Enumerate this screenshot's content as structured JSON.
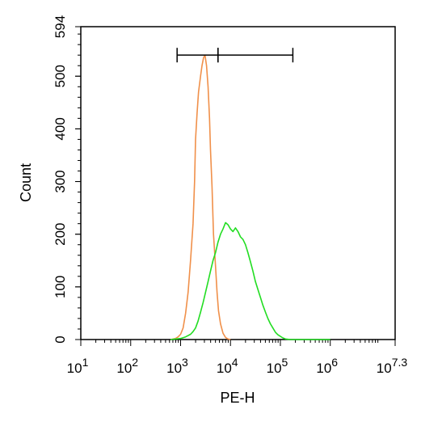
{
  "chart_data": {
    "type": "line",
    "xlabel": "PE-H",
    "ylabel": "Count",
    "x_scale": "log10",
    "xlim": [
      1,
      7.3
    ],
    "ylim": [
      0,
      594
    ],
    "x_ticks": [
      {
        "exp": 1,
        "base": "10",
        "sup": "1"
      },
      {
        "exp": 2,
        "base": "10",
        "sup": "2"
      },
      {
        "exp": 3,
        "base": "10",
        "sup": "3"
      },
      {
        "exp": 4,
        "base": "10",
        "sup": "4"
      },
      {
        "exp": 5,
        "base": "10",
        "sup": "5"
      },
      {
        "exp": 6,
        "base": "10",
        "sup": "6"
      },
      {
        "exp": 7.3,
        "base": "10",
        "sup": "7.3"
      }
    ],
    "y_ticks": [
      0,
      100,
      200,
      300,
      400,
      500,
      594
    ],
    "series": [
      {
        "color": "#f0904a",
        "points": [
          [
            2.8,
            0
          ],
          [
            2.9,
            2
          ],
          [
            2.95,
            5
          ],
          [
            3.0,
            10
          ],
          [
            3.05,
            22
          ],
          [
            3.1,
            50
          ],
          [
            3.15,
            90
          ],
          [
            3.2,
            150
          ],
          [
            3.25,
            220
          ],
          [
            3.28,
            300
          ],
          [
            3.3,
            380
          ],
          [
            3.33,
            430
          ],
          [
            3.36,
            470
          ],
          [
            3.4,
            500
          ],
          [
            3.43,
            520
          ],
          [
            3.46,
            535
          ],
          [
            3.49,
            540
          ],
          [
            3.52,
            520
          ],
          [
            3.55,
            480
          ],
          [
            3.58,
            420
          ],
          [
            3.6,
            360
          ],
          [
            3.63,
            290
          ],
          [
            3.66,
            200
          ],
          [
            3.7,
            140
          ],
          [
            3.73,
            90
          ],
          [
            3.76,
            55
          ],
          [
            3.8,
            30
          ],
          [
            3.85,
            12
          ],
          [
            3.9,
            4
          ],
          [
            3.95,
            1
          ],
          [
            4.0,
            0
          ]
        ]
      },
      {
        "color": "#22dd22",
        "points": [
          [
            2.8,
            0
          ],
          [
            3.0,
            2
          ],
          [
            3.1,
            5
          ],
          [
            3.2,
            10
          ],
          [
            3.25,
            15
          ],
          [
            3.3,
            22
          ],
          [
            3.35,
            35
          ],
          [
            3.4,
            52
          ],
          [
            3.45,
            70
          ],
          [
            3.5,
            90
          ],
          [
            3.55,
            110
          ],
          [
            3.6,
            130
          ],
          [
            3.65,
            150
          ],
          [
            3.7,
            165
          ],
          [
            3.75,
            185
          ],
          [
            3.8,
            200
          ],
          [
            3.85,
            210
          ],
          [
            3.9,
            222
          ],
          [
            3.95,
            218
          ],
          [
            4.0,
            210
          ],
          [
            4.05,
            205
          ],
          [
            4.1,
            212
          ],
          [
            4.15,
            205
          ],
          [
            4.2,
            195
          ],
          [
            4.25,
            190
          ],
          [
            4.3,
            180
          ],
          [
            4.35,
            165
          ],
          [
            4.4,
            148
          ],
          [
            4.45,
            130
          ],
          [
            4.5,
            110
          ],
          [
            4.55,
            95
          ],
          [
            4.6,
            80
          ],
          [
            4.65,
            65
          ],
          [
            4.7,
            52
          ],
          [
            4.75,
            40
          ],
          [
            4.8,
            30
          ],
          [
            4.85,
            22
          ],
          [
            4.9,
            14
          ],
          [
            4.95,
            9
          ],
          [
            5.0,
            6
          ],
          [
            5.05,
            3
          ],
          [
            5.1,
            1
          ],
          [
            5.2,
            0
          ],
          [
            6.0,
            0
          ]
        ]
      }
    ],
    "gates": [
      {
        "x_start": 2.93,
        "x_end": 3.75,
        "y": 540
      },
      {
        "x_start": 3.75,
        "x_end": 5.25,
        "y": 540
      }
    ],
    "grid": false,
    "legend": "none"
  }
}
